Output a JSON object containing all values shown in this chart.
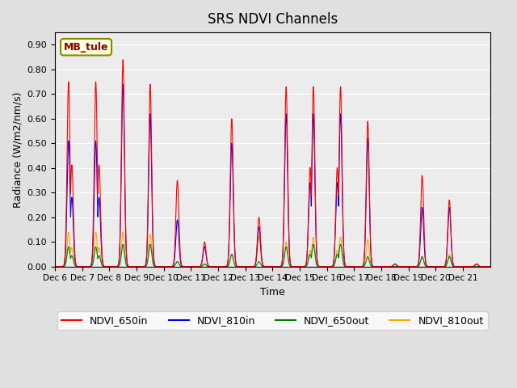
{
  "title": "SRS NDVI Channels",
  "xlabel": "Time",
  "ylabel": "Radiance (W/m2/nm/s)",
  "annotation": "MB_tule",
  "legend": [
    "NDVI_650in",
    "NDVI_810in",
    "NDVI_650out",
    "NDVI_810out"
  ],
  "colors": [
    "red",
    "blue",
    "green",
    "orange"
  ],
  "ylim": [
    0.0,
    0.95
  ],
  "xtick_positions": [
    0,
    1,
    2,
    3,
    4,
    5,
    6,
    7,
    8,
    9,
    10,
    11,
    12,
    13,
    14,
    15
  ],
  "xtick_labels": [
    "Dec 6",
    "Dec 7",
    "Dec 8",
    "Dec 9",
    "Dec 10",
    "Dec 11",
    "Dec 12",
    "Dec 13",
    "Dec 14",
    "Dec 15",
    "Dec 16",
    "Dec 17",
    "Dec 18",
    "Dec 19",
    "Dec 20",
    "Dec 21"
  ],
  "background_color": "#e0e0e0",
  "plot_bg_color": "#ececec",
  "days": [
    6,
    7,
    8,
    9,
    10,
    11,
    12,
    13,
    14,
    15,
    16,
    17,
    18,
    19,
    20,
    21
  ],
  "peaks_650in": [
    0.75,
    0.75,
    0.84,
    0.74,
    0.35,
    0.1,
    0.6,
    0.2,
    0.73,
    0.73,
    0.73,
    0.59,
    0.01,
    0.37,
    0.27,
    0.01
  ],
  "peaks_810in": [
    0.51,
    0.51,
    0.74,
    0.62,
    0.19,
    0.08,
    0.5,
    0.16,
    0.62,
    0.62,
    0.62,
    0.52,
    0.01,
    0.24,
    0.24,
    0.01
  ],
  "peaks_650out": [
    0.08,
    0.08,
    0.09,
    0.09,
    0.02,
    0.01,
    0.05,
    0.02,
    0.08,
    0.09,
    0.09,
    0.04,
    0.0,
    0.04,
    0.04,
    0.0
  ],
  "peaks_810out": [
    0.14,
    0.14,
    0.14,
    0.13,
    0.02,
    0.01,
    0.05,
    0.12,
    0.1,
    0.12,
    0.12,
    0.11,
    0.0,
    0.04,
    0.05,
    0.0
  ],
  "grid_color": "#ffffff",
  "figsize": [
    6.4,
    4.8
  ],
  "dpi": 100
}
